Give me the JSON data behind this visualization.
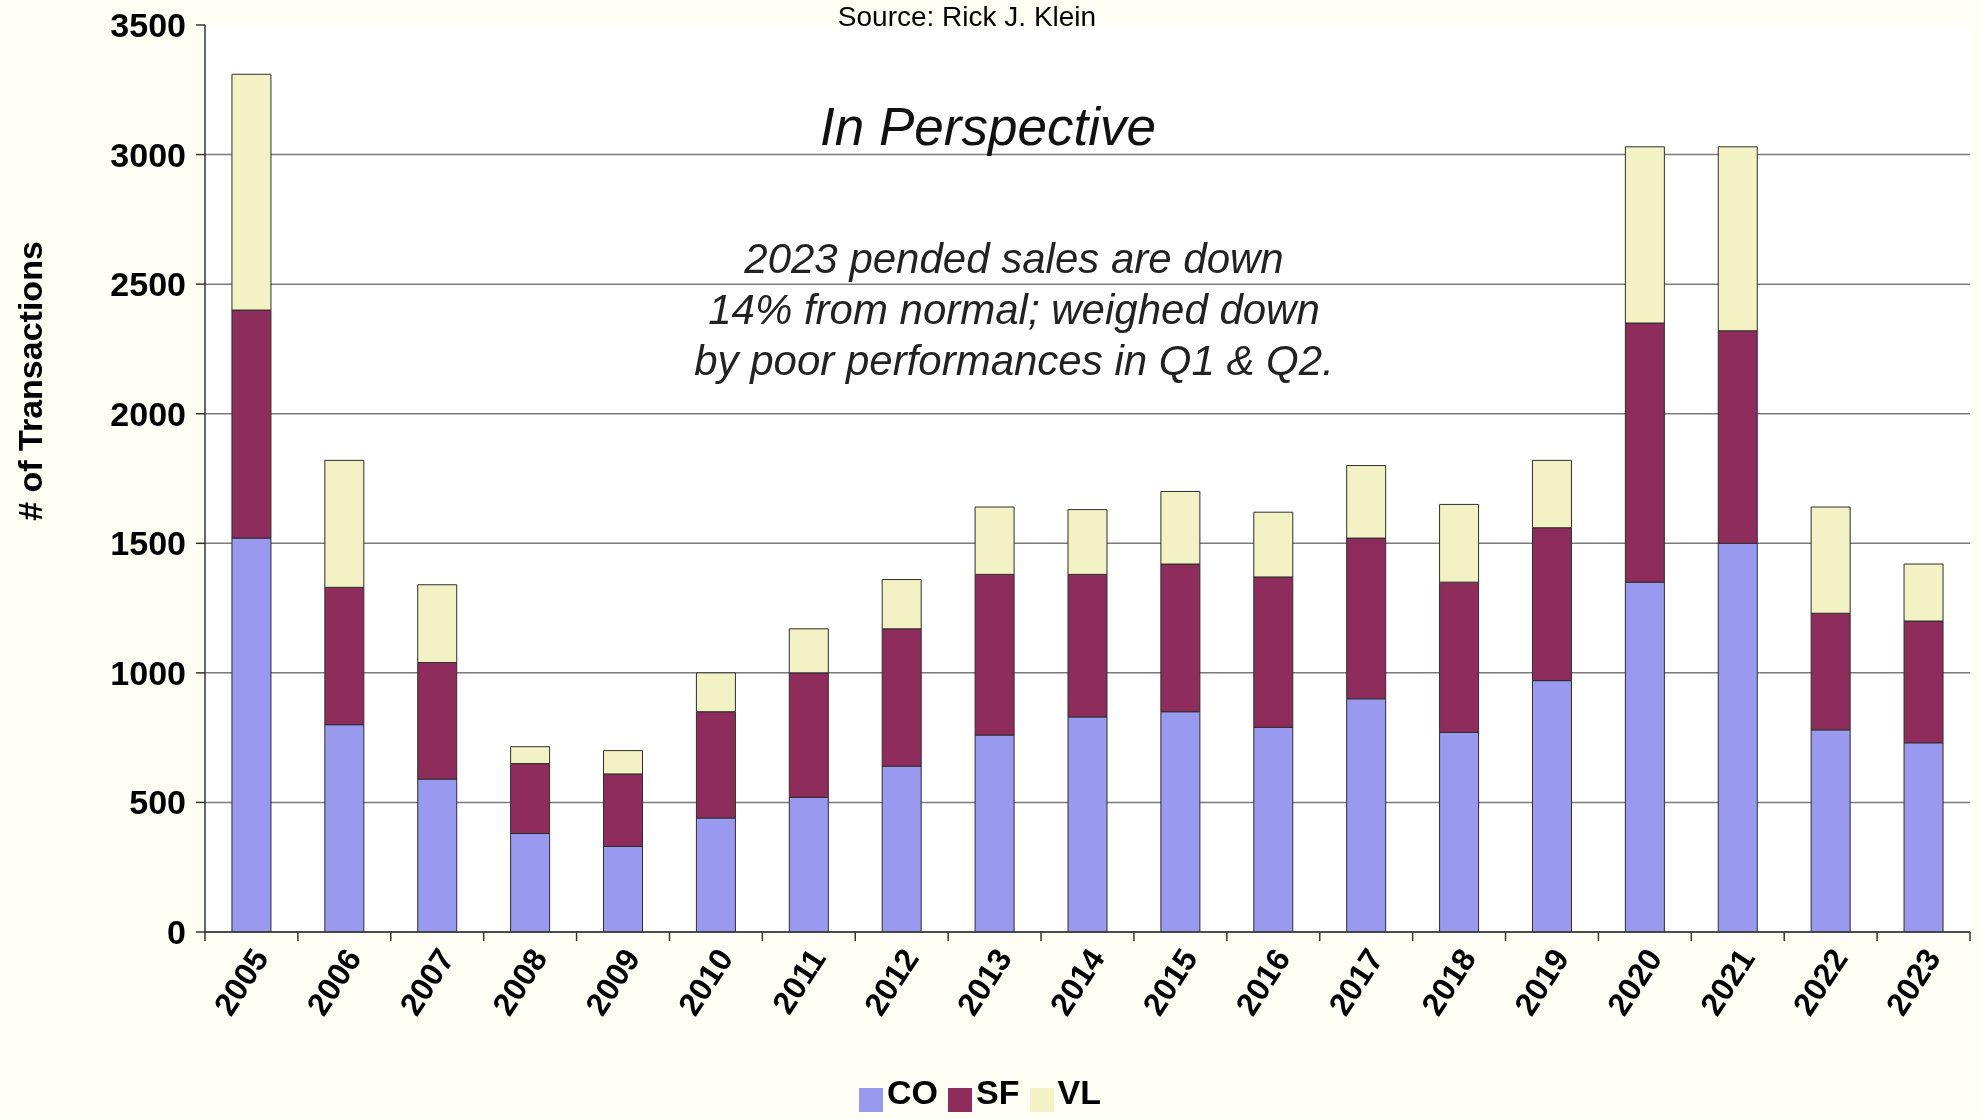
{
  "chart_data": {
    "type": "bar",
    "title": "In Perspective",
    "ylabel": "# of Transactions",
    "annotations": [
      "Source: Rick J. Klein",
      "2023 pended sales are down\n14% from normal; weighed down\nby poor performances in Q1 & Q2."
    ],
    "categories": [
      "2005",
      "2006",
      "2007",
      "2008",
      "2009",
      "2010",
      "2011",
      "2012",
      "2013",
      "2014",
      "2015",
      "2016",
      "2017",
      "2018",
      "2019",
      "2020",
      "2021",
      "2022",
      "2023"
    ],
    "stacked": true,
    "series": [
      {
        "name": "CO",
        "color": "#9999f0",
        "values": [
          1520,
          800,
          590,
          380,
          330,
          440,
          520,
          640,
          760,
          830,
          850,
          790,
          900,
          770,
          970,
          1350,
          1500,
          780,
          730
        ]
      },
      {
        "name": "SF",
        "color": "#8e2c5c",
        "values": [
          880,
          530,
          450,
          270,
          280,
          410,
          480,
          530,
          620,
          550,
          570,
          580,
          620,
          580,
          590,
          1000,
          820,
          450,
          470
        ]
      },
      {
        "name": "VL",
        "color": "#f2f2c4",
        "values": [
          910,
          490,
          300,
          65,
          90,
          150,
          170,
          190,
          260,
          250,
          280,
          250,
          280,
          300,
          260,
          680,
          710,
          410,
          220
        ]
      }
    ],
    "ylim": [
      0,
      3500
    ],
    "yticks": [
      0,
      500,
      1000,
      1500,
      2000,
      2500,
      3000,
      3500
    ],
    "grid": "y",
    "legend": "bottom"
  }
}
